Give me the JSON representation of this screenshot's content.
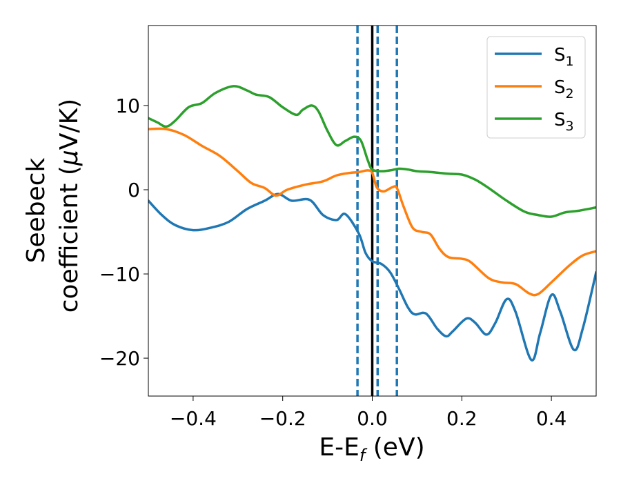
{
  "chart_data": {
    "type": "line",
    "xlabel": {
      "main": "E-E",
      "sub": "f",
      "suffix": " (eV)"
    },
    "ylabel": {
      "line1": "Seebeck",
      "line2_pre": "coefficient  (",
      "mu": "μ",
      "line2_post": "V/K)"
    },
    "xlim": [
      -0.5,
      0.5
    ],
    "ylim": [
      -24.5,
      19.5
    ],
    "xticks": [
      -0.4,
      -0.2,
      0.0,
      0.2,
      0.4
    ],
    "xtick_labels": [
      "−0.4",
      "−0.2",
      "0.0",
      "0.2",
      "0.4"
    ],
    "yticks": [
      -20,
      -10,
      0,
      10
    ],
    "ytick_labels": [
      "−20",
      "−10",
      "0",
      "10"
    ],
    "legend_position": "top-right",
    "vlines": [
      {
        "x": 0.0,
        "style": "solid",
        "color": "#000000"
      },
      {
        "x": -0.033,
        "style": "dashed",
        "color": "#1f77b4"
      },
      {
        "x": 0.012,
        "style": "dashed",
        "color": "#1f77b4"
      },
      {
        "x": 0.055,
        "style": "dashed",
        "color": "#1f77b4"
      }
    ],
    "series": [
      {
        "name": "S",
        "sub": "1",
        "color": "#1f77b4",
        "points": [
          [
            -0.5,
            -1.3
          ],
          [
            -0.47,
            -3.0
          ],
          [
            -0.44,
            -4.2
          ],
          [
            -0.4,
            -4.8
          ],
          [
            -0.36,
            -4.5
          ],
          [
            -0.32,
            -3.8
          ],
          [
            -0.28,
            -2.3
          ],
          [
            -0.24,
            -1.3
          ],
          [
            -0.21,
            -0.5
          ],
          [
            -0.18,
            -1.3
          ],
          [
            -0.14,
            -1.2
          ],
          [
            -0.11,
            -3.0
          ],
          [
            -0.08,
            -3.6
          ],
          [
            -0.06,
            -2.9
          ],
          [
            -0.03,
            -5.2
          ],
          [
            -0.015,
            -7.5
          ],
          [
            0.0,
            -8.5
          ],
          [
            0.02,
            -8.8
          ],
          [
            0.04,
            -9.8
          ],
          [
            0.06,
            -11.8
          ],
          [
            0.08,
            -14.0
          ],
          [
            0.095,
            -14.8
          ],
          [
            0.12,
            -14.7
          ],
          [
            0.145,
            -16.5
          ],
          [
            0.165,
            -17.4
          ],
          [
            0.18,
            -16.8
          ],
          [
            0.21,
            -15.3
          ],
          [
            0.23,
            -15.8
          ],
          [
            0.255,
            -17.2
          ],
          [
            0.275,
            -15.8
          ],
          [
            0.3,
            -13.0
          ],
          [
            0.32,
            -14.5
          ],
          [
            0.355,
            -20.2
          ],
          [
            0.375,
            -17.0
          ],
          [
            0.4,
            -12.5
          ],
          [
            0.42,
            -14.5
          ],
          [
            0.45,
            -19.0
          ],
          [
            0.47,
            -16.5
          ],
          [
            0.5,
            -9.8
          ]
        ]
      },
      {
        "name": "S",
        "sub": "2",
        "color": "#ff7f0e",
        "points": [
          [
            -0.5,
            7.2
          ],
          [
            -0.46,
            7.2
          ],
          [
            -0.42,
            6.5
          ],
          [
            -0.38,
            5.2
          ],
          [
            -0.34,
            4.0
          ],
          [
            -0.3,
            2.2
          ],
          [
            -0.27,
            0.8
          ],
          [
            -0.24,
            0.2
          ],
          [
            -0.215,
            -0.7
          ],
          [
            -0.19,
            0.0
          ],
          [
            -0.15,
            0.6
          ],
          [
            -0.11,
            1.0
          ],
          [
            -0.08,
            1.7
          ],
          [
            -0.05,
            2.0
          ],
          [
            -0.03,
            2.1
          ],
          [
            -0.01,
            2.3
          ],
          [
            0.0,
            2.0
          ],
          [
            0.01,
            0.3
          ],
          [
            0.025,
            -0.2
          ],
          [
            0.045,
            0.3
          ],
          [
            0.055,
            0.2
          ],
          [
            0.07,
            -2.0
          ],
          [
            0.09,
            -4.5
          ],
          [
            0.11,
            -5.0
          ],
          [
            0.13,
            -5.3
          ],
          [
            0.15,
            -7.0
          ],
          [
            0.17,
            -8.0
          ],
          [
            0.2,
            -8.2
          ],
          [
            0.22,
            -8.6
          ],
          [
            0.26,
            -10.5
          ],
          [
            0.29,
            -11.0
          ],
          [
            0.32,
            -11.2
          ],
          [
            0.35,
            -12.3
          ],
          [
            0.37,
            -12.4
          ],
          [
            0.4,
            -11.0
          ],
          [
            0.44,
            -9.0
          ],
          [
            0.47,
            -7.8
          ],
          [
            0.5,
            -7.3
          ]
        ]
      },
      {
        "name": "S",
        "sub": "3",
        "color": "#2ca02c",
        "points": [
          [
            -0.5,
            8.5
          ],
          [
            -0.48,
            8.0
          ],
          [
            -0.46,
            7.5
          ],
          [
            -0.44,
            8.2
          ],
          [
            -0.41,
            9.8
          ],
          [
            -0.38,
            10.3
          ],
          [
            -0.35,
            11.5
          ],
          [
            -0.31,
            12.3
          ],
          [
            -0.28,
            11.8
          ],
          [
            -0.26,
            11.3
          ],
          [
            -0.23,
            11.0
          ],
          [
            -0.2,
            9.8
          ],
          [
            -0.17,
            8.9
          ],
          [
            -0.155,
            9.5
          ],
          [
            -0.135,
            10.0
          ],
          [
            -0.12,
            9.3
          ],
          [
            -0.1,
            7.0
          ],
          [
            -0.08,
            5.3
          ],
          [
            -0.06,
            5.8
          ],
          [
            -0.04,
            6.3
          ],
          [
            -0.025,
            5.8
          ],
          [
            -0.01,
            3.5
          ],
          [
            0.0,
            2.4
          ],
          [
            0.02,
            2.2
          ],
          [
            0.04,
            2.3
          ],
          [
            0.06,
            2.5
          ],
          [
            0.08,
            2.4
          ],
          [
            0.1,
            2.2
          ],
          [
            0.13,
            2.1
          ],
          [
            0.17,
            1.9
          ],
          [
            0.2,
            1.8
          ],
          [
            0.23,
            1.2
          ],
          [
            0.26,
            0.2
          ],
          [
            0.3,
            -1.3
          ],
          [
            0.34,
            -2.6
          ],
          [
            0.37,
            -3.0
          ],
          [
            0.4,
            -3.2
          ],
          [
            0.43,
            -2.7
          ],
          [
            0.46,
            -2.5
          ],
          [
            0.5,
            -2.1
          ]
        ]
      }
    ]
  }
}
